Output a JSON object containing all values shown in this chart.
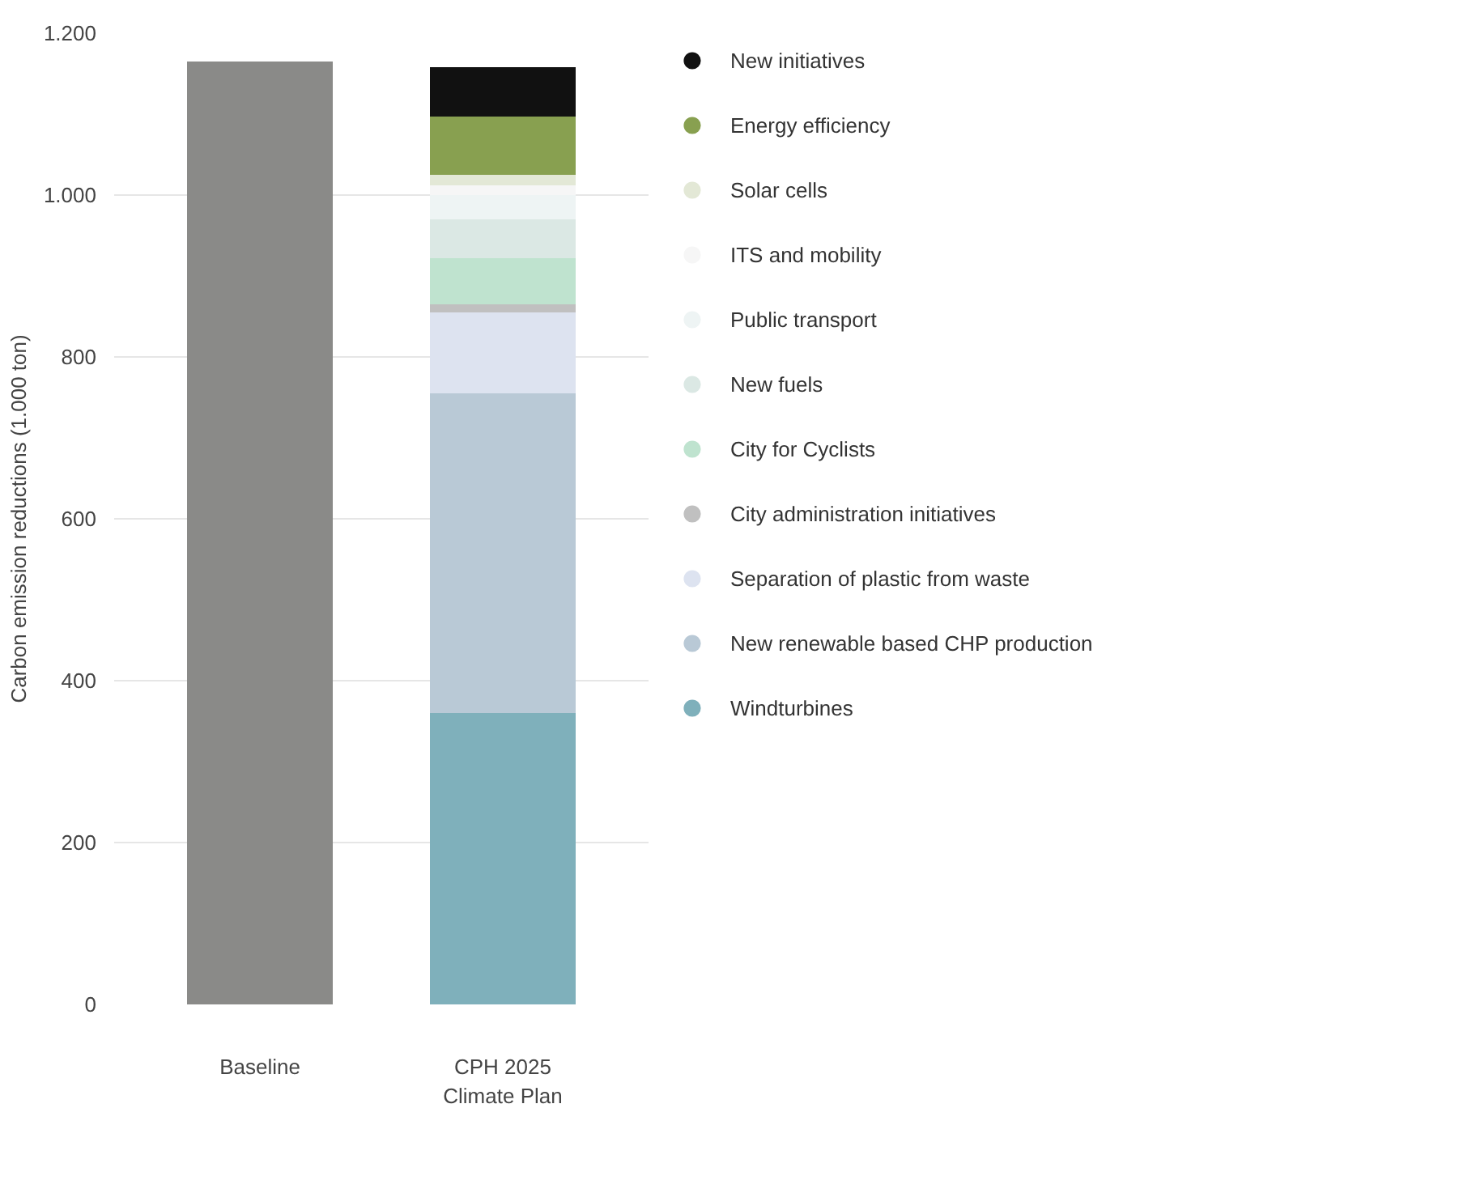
{
  "chart_data": {
    "type": "bar",
    "stacked": true,
    "ylabel": "Carbon emission reductions (1.000 ton)",
    "categories": [
      "Baseline",
      "CPH 2025\nClimate Plan"
    ],
    "series": [
      {
        "color": "#8a8a88",
        "values": [
          1165,
          null
        ]
      },
      {
        "name": "Windturbines",
        "color": "#7fb0bb",
        "values": [
          null,
          360
        ]
      },
      {
        "name": "New renewable based CHP production",
        "color": "#b9c9d6",
        "values": [
          null,
          395
        ]
      },
      {
        "name": "Separation of plastic from waste",
        "color": "#dde3f0",
        "values": [
          null,
          100
        ]
      },
      {
        "name": "City administration initiatives",
        "color": "#c0c0c0",
        "values": [
          null,
          10
        ]
      },
      {
        "name": "City for Cyclists",
        "color": "#bfe3cf",
        "values": [
          null,
          57
        ]
      },
      {
        "name": "New fuels",
        "color": "#dbe8e4",
        "values": [
          null,
          48
        ]
      },
      {
        "name": "Public transport",
        "color": "#eef4f4",
        "values": [
          null,
          30
        ]
      },
      {
        "name": "ITS and mobility",
        "color": "#f6f6f6",
        "values": [
          null,
          12
        ]
      },
      {
        "name": "Solar cells",
        "color": "#e3e8d6",
        "values": [
          null,
          13
        ]
      },
      {
        "name": "Energy efficiency",
        "color": "#88a050",
        "values": [
          null,
          72
        ]
      },
      {
        "name": "New initiatives",
        "color": "#111111",
        "values": [
          null,
          61
        ]
      }
    ],
    "ylim": [
      0,
      1200
    ],
    "yticks": [
      0,
      200,
      400,
      600,
      800,
      {
        "value": 1000,
        "label": "1.000"
      },
      {
        "value": 1200,
        "label": "1.200"
      }
    ],
    "grid": "y",
    "legend": "right"
  }
}
